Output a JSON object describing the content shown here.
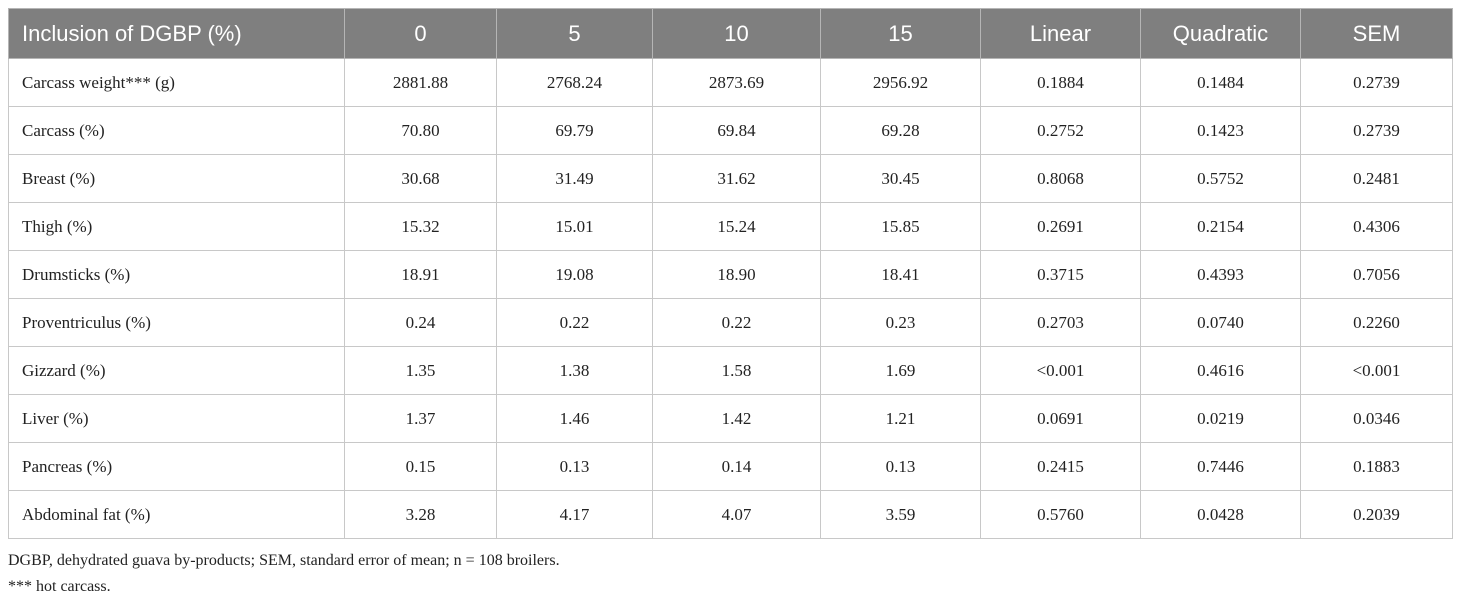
{
  "table": {
    "header": [
      "Inclusion of DGBP (%)",
      "0",
      "5",
      "10",
      "15",
      "Linear",
      "Quadratic",
      "SEM"
    ],
    "rows": [
      [
        "Carcass weight*** (g)",
        "2881.88",
        "2768.24",
        "2873.69",
        "2956.92",
        "0.1884",
        "0.1484",
        "0.2739"
      ],
      [
        "Carcass (%)",
        "70.80",
        "69.79",
        "69.84",
        "69.28",
        "0.2752",
        "0.1423",
        "0.2739"
      ],
      [
        "Breast (%)",
        "30.68",
        "31.49",
        "31.62",
        "30.45",
        "0.8068",
        "0.5752",
        "0.2481"
      ],
      [
        "Thigh (%)",
        "15.32",
        "15.01",
        "15.24",
        "15.85",
        "0.2691",
        "0.2154",
        "0.4306"
      ],
      [
        "Drumsticks (%)",
        "18.91",
        "19.08",
        "18.90",
        "18.41",
        "0.3715",
        "0.4393",
        "0.7056"
      ],
      [
        "Proventriculus (%)",
        "0.24",
        "0.22",
        "0.22",
        "0.23",
        "0.2703",
        "0.0740",
        "0.2260"
      ],
      [
        "Gizzard (%)",
        "1.35",
        "1.38",
        "1.58",
        "1.69",
        "<0.001",
        "0.4616",
        "<0.001"
      ],
      [
        "Liver (%)",
        "1.37",
        "1.46",
        "1.42",
        "1.21",
        "0.0691",
        "0.0219",
        "0.0346"
      ],
      [
        "Pancreas (%)",
        "0.15",
        "0.13",
        "0.14",
        "0.13",
        "0.2415",
        "0.7446",
        "0.1883"
      ],
      [
        "Abdominal fat (%)",
        "3.28",
        "4.17",
        "4.07",
        "3.59",
        "0.5760",
        "0.0428",
        "0.2039"
      ]
    ]
  },
  "footnotes": [
    "DGBP, dehydrated guava by-products; SEM, standard error of mean; n = 108 broilers.",
    "*** hot carcass."
  ]
}
